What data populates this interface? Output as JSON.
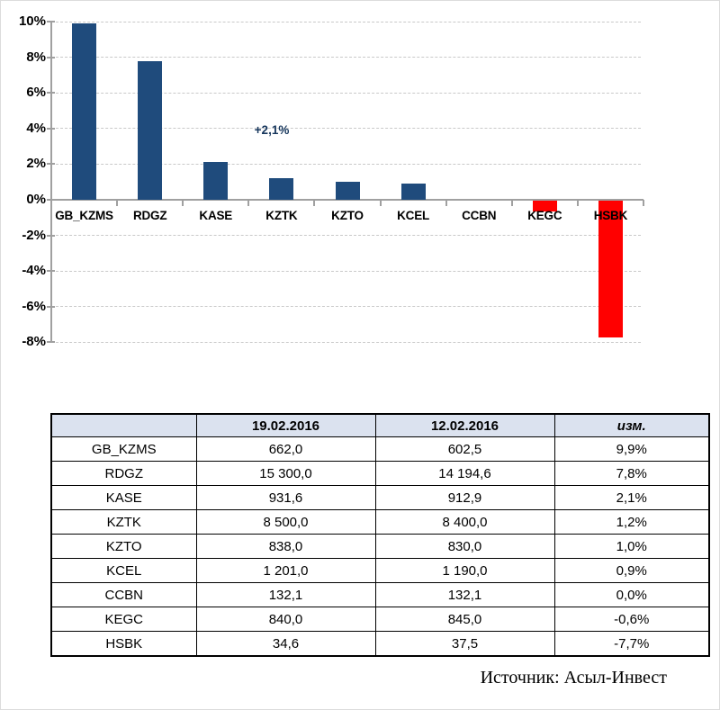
{
  "chart_data": {
    "type": "bar",
    "title": "",
    "xlabel": "",
    "ylabel": "",
    "categories": [
      "GB_KZMS",
      "RDGZ",
      "KASE",
      "KZTK",
      "KZTO",
      "KCEL",
      "CCBN",
      "KEGC",
      "HSBK"
    ],
    "values": [
      9.9,
      7.8,
      2.1,
      1.2,
      1.0,
      0.9,
      0.0,
      -0.6,
      -7.7
    ],
    "value_unit": "%",
    "ylim": [
      -8,
      10
    ],
    "ytick_step": 2,
    "ytick_suffix": "%",
    "grid": "horizontal-dashed",
    "legend": "none",
    "annotations": [
      {
        "text": "+2,1%",
        "target": "KASE"
      }
    ],
    "colors": {
      "positive": "#1f4b7c",
      "negative": "#ff0000",
      "annotation": "#17375d",
      "gridline": "#c9c9c9",
      "axis": "#a0a0a0"
    }
  },
  "table": {
    "header_bg": "#dbe2ef",
    "columns": [
      "",
      "19.02.2016",
      "12.02.2016",
      "изм."
    ],
    "rows": [
      {
        "ticker": "GB_KZMS",
        "v1": "662,0",
        "v2": "602,5",
        "change": "9,9%"
      },
      {
        "ticker": "RDGZ",
        "v1": "15 300,0",
        "v2": "14 194,6",
        "change": "7,8%"
      },
      {
        "ticker": "KASE",
        "v1": "931,6",
        "v2": "912,9",
        "change": "2,1%"
      },
      {
        "ticker": "KZTK",
        "v1": "8 500,0",
        "v2": "8 400,0",
        "change": "1,2%"
      },
      {
        "ticker": "KZTO",
        "v1": "838,0",
        "v2": "830,0",
        "change": "1,0%"
      },
      {
        "ticker": "KCEL",
        "v1": "1 201,0",
        "v2": "1 190,0",
        "change": "0,9%"
      },
      {
        "ticker": "CCBN",
        "v1": "132,1",
        "v2": "132,1",
        "change": "0,0%"
      },
      {
        "ticker": "KEGC",
        "v1": "840,0",
        "v2": "845,0",
        "change": "-0,6%"
      },
      {
        "ticker": "HSBK",
        "v1": "34,6",
        "v2": "37,5",
        "change": "-7,7%"
      }
    ]
  },
  "source_line": "Источник: Асыл-Инвест"
}
